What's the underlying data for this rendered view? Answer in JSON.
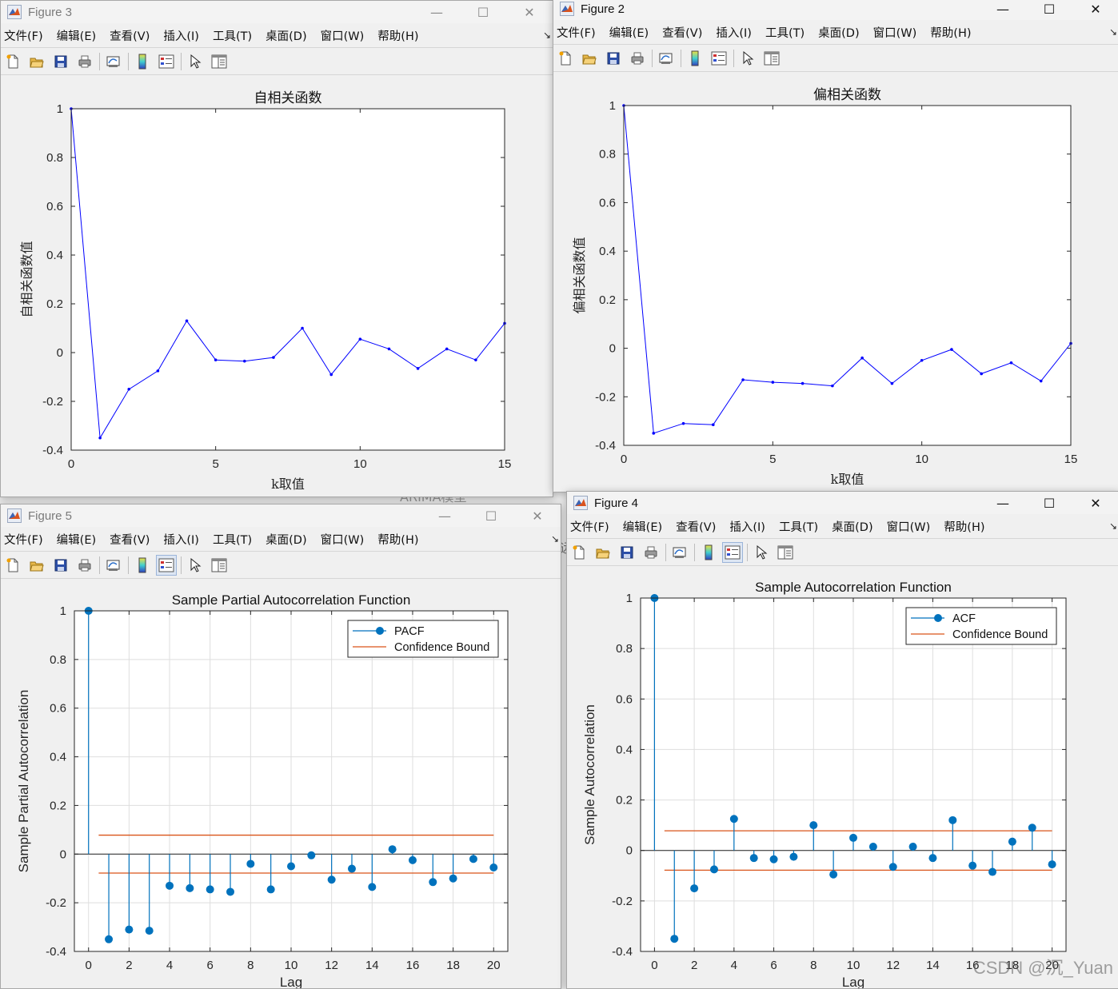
{
  "background_text": {
    "line1": "ARIMA模型",
    "line2": "远"
  },
  "watermark": "CSDN @沉_Yuan",
  "menus": [
    "文件(F)",
    "编辑(E)",
    "查看(V)",
    "插入(I)",
    "工具(T)",
    "桌面(D)",
    "窗口(W)",
    "帮助(H)"
  ],
  "window_buttons": {
    "minimize": "—",
    "maximize": "☐",
    "close": "✕"
  },
  "toolbar_icons": [
    "new-figure-icon",
    "open-file-icon",
    "save-icon",
    "print-icon",
    "link-plot-icon",
    "colorbar-icon",
    "legend-icon",
    "select-arrow-icon",
    "property-editor-icon"
  ],
  "colors": {
    "blue_line": "#0000ff",
    "stem": "#0072bd",
    "bound": "#d95319"
  },
  "windows": {
    "fig3": {
      "title": "Figure 3",
      "chart_data": {
        "type": "line",
        "title": "自相关函数",
        "xlabel": "k取值",
        "ylabel": "自相关函数值",
        "x": [
          0,
          1,
          2,
          3,
          4,
          5,
          6,
          7,
          8,
          9,
          10,
          11,
          12,
          13,
          14,
          15
        ],
        "values": [
          1.0,
          -0.35,
          -0.15,
          -0.075,
          0.13,
          -0.03,
          -0.035,
          -0.02,
          0.1,
          -0.09,
          0.055,
          0.015,
          -0.065,
          0.015,
          -0.03,
          0.12
        ],
        "xlim": [
          0,
          15
        ],
        "ylim": [
          -0.4,
          1
        ],
        "xticks": [
          0,
          5,
          10,
          15
        ],
        "yticks": [
          -0.4,
          -0.2,
          0,
          0.2,
          0.4,
          0.6,
          0.8,
          1
        ],
        "grid": false
      }
    },
    "fig2": {
      "title": "Figure 2",
      "chart_data": {
        "type": "line",
        "title": "偏相关函数",
        "xlabel": "k取值",
        "ylabel": "偏相关函数值",
        "x": [
          0,
          1,
          2,
          3,
          4,
          5,
          6,
          7,
          8,
          9,
          10,
          11,
          12,
          13,
          14,
          15
        ],
        "values": [
          1.0,
          -0.35,
          -0.31,
          -0.315,
          -0.13,
          -0.14,
          -0.145,
          -0.155,
          -0.04,
          -0.145,
          -0.05,
          -0.005,
          -0.105,
          -0.06,
          -0.135,
          0.02
        ],
        "xlim": [
          0,
          15
        ],
        "ylim": [
          -0.4,
          1
        ],
        "xticks": [
          0,
          5,
          10,
          15
        ],
        "yticks": [
          -0.4,
          -0.2,
          0,
          0.2,
          0.4,
          0.6,
          0.8,
          1
        ],
        "grid": false
      }
    },
    "fig5": {
      "title": "Figure 5",
      "chart_data": {
        "type": "stem",
        "title": "Sample Partial Autocorrelation Function",
        "xlabel": "Lag",
        "ylabel": "Sample Partial Autocorrelation",
        "x": [
          0,
          1,
          2,
          3,
          4,
          5,
          6,
          7,
          8,
          9,
          10,
          11,
          12,
          13,
          14,
          15,
          16,
          17,
          18,
          19,
          20
        ],
        "values": [
          1.0,
          -0.35,
          -0.31,
          -0.315,
          -0.13,
          -0.14,
          -0.145,
          -0.155,
          -0.04,
          -0.145,
          -0.05,
          -0.005,
          -0.105,
          -0.06,
          -0.135,
          0.02,
          -0.025,
          -0.115,
          -0.1,
          -0.02,
          -0.055
        ],
        "bounds": [
          0.078,
          -0.078
        ],
        "bound_x": [
          0.5,
          20
        ],
        "legend": [
          "PACF",
          "Confidence Bound"
        ],
        "legend_position": "top-right",
        "xlim": [
          -0.7,
          20.7
        ],
        "ylim": [
          -0.4,
          1
        ],
        "xticks": [
          0,
          2,
          4,
          6,
          8,
          10,
          12,
          14,
          16,
          18,
          20
        ],
        "yticks": [
          -0.4,
          -0.2,
          0,
          0.2,
          0.4,
          0.6,
          0.8,
          1
        ],
        "grid": true
      }
    },
    "fig4": {
      "title": "Figure 4",
      "chart_data": {
        "type": "stem",
        "title": "Sample Autocorrelation Function",
        "xlabel": "Lag",
        "ylabel": "Sample Autocorrelation",
        "x": [
          0,
          1,
          2,
          3,
          4,
          5,
          6,
          7,
          8,
          9,
          10,
          11,
          12,
          13,
          14,
          15,
          16,
          17,
          18,
          19,
          20
        ],
        "values": [
          1.0,
          -0.35,
          -0.15,
          -0.075,
          0.125,
          -0.03,
          -0.035,
          -0.025,
          0.1,
          -0.095,
          0.05,
          0.015,
          -0.065,
          0.015,
          -0.03,
          0.12,
          -0.06,
          -0.085,
          0.035,
          0.09,
          -0.055
        ],
        "bounds": [
          0.078,
          -0.078
        ],
        "bound_x": [
          0.5,
          20
        ],
        "legend": [
          "ACF",
          "Confidence Bound"
        ],
        "legend_position": "top-right",
        "xlim": [
          -0.7,
          20.7
        ],
        "ylim": [
          -0.4,
          1
        ],
        "xticks": [
          0,
          2,
          4,
          6,
          8,
          10,
          12,
          14,
          16,
          18,
          20
        ],
        "yticks": [
          -0.4,
          -0.2,
          0,
          0.2,
          0.4,
          0.6,
          0.8,
          1
        ],
        "grid": true
      }
    }
  }
}
